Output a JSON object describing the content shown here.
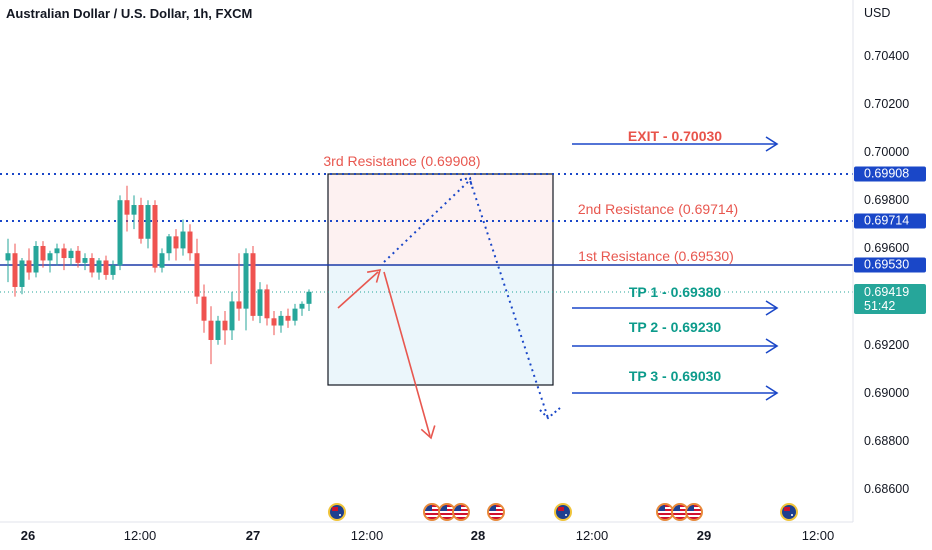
{
  "header": {
    "symbol_title": "Australian Dollar / U.S. Dollar, 1h, FXCM",
    "currency": "USD"
  },
  "price_axis": {
    "ticks": [
      "0.70400",
      "0.70200",
      "0.70000",
      "0.69800",
      "0.69600",
      "0.69200",
      "0.69000",
      "0.68800",
      "0.68600"
    ],
    "tags": [
      {
        "value": "0.69908",
        "color": "#1a47c8"
      },
      {
        "value": "0.69714",
        "color": "#1a47c8"
      },
      {
        "value": "0.69530",
        "color": "#1a47c8"
      }
    ],
    "current_price": {
      "value": "0.69419",
      "countdown": "51:42",
      "color": "#26a69a"
    }
  },
  "time_axis": {
    "labels": [
      {
        "text": "26",
        "bold": true
      },
      {
        "text": "12:00",
        "bold": false
      },
      {
        "text": "27",
        "bold": true
      },
      {
        "text": "12:00",
        "bold": false
      },
      {
        "text": "28",
        "bold": true
      },
      {
        "text": "12:00",
        "bold": false
      },
      {
        "text": "29",
        "bold": true
      },
      {
        "text": "12:00",
        "bold": false
      }
    ]
  },
  "annotations": {
    "exit": "EXIT - 0.70030",
    "resistance_3": "3rd Resistance (0.69908)",
    "resistance_2": "2nd Resistance (0.69714)",
    "resistance_1": "1st Resistance (0.69530)",
    "tp1": "TP 1 - 0.69380",
    "tp2": "TP 2 - 0.69230",
    "tp3": "TP 3 - 0.69030"
  },
  "events": [
    "au",
    "us",
    "us",
    "us",
    "us",
    "au",
    "us",
    "us",
    "us",
    "au"
  ],
  "colors": {
    "up": "#26a69a",
    "down": "#ef5350",
    "line": "#1a47c8",
    "red_arrow": "#e8574f"
  },
  "chart_data": {
    "type": "candlestick",
    "symbol": "Australian Dollar / U.S. Dollar",
    "interval": "1h",
    "source": "FXCM",
    "y_unit": "USD",
    "ylim": [
      0.685,
      0.7055
    ],
    "y_ticks": [
      0.704,
      0.702,
      0.7,
      0.698,
      0.696,
      0.692,
      0.69,
      0.688,
      0.686
    ],
    "x_labels": [
      "26",
      "12:00",
      "27",
      "12:00",
      "28",
      "12:00",
      "29",
      "12:00"
    ],
    "candles": [
      {
        "o": 0.6955,
        "h": 0.6964,
        "l": 0.6946,
        "c": 0.6958
      },
      {
        "o": 0.6958,
        "h": 0.6962,
        "l": 0.694,
        "c": 0.6944
      },
      {
        "o": 0.6944,
        "h": 0.6956,
        "l": 0.6941,
        "c": 0.6955
      },
      {
        "o": 0.6955,
        "h": 0.696,
        "l": 0.6947,
        "c": 0.695
      },
      {
        "o": 0.695,
        "h": 0.6963,
        "l": 0.6948,
        "c": 0.6961
      },
      {
        "o": 0.6961,
        "h": 0.6963,
        "l": 0.6952,
        "c": 0.6955
      },
      {
        "o": 0.6955,
        "h": 0.6959,
        "l": 0.695,
        "c": 0.6958
      },
      {
        "o": 0.6958,
        "h": 0.6962,
        "l": 0.6953,
        "c": 0.696
      },
      {
        "o": 0.696,
        "h": 0.6962,
        "l": 0.6951,
        "c": 0.6956
      },
      {
        "o": 0.6956,
        "h": 0.696,
        "l": 0.6953,
        "c": 0.6959
      },
      {
        "o": 0.6959,
        "h": 0.6961,
        "l": 0.6952,
        "c": 0.6954
      },
      {
        "o": 0.6954,
        "h": 0.6958,
        "l": 0.6951,
        "c": 0.6956
      },
      {
        "o": 0.6956,
        "h": 0.6958,
        "l": 0.6948,
        "c": 0.695
      },
      {
        "o": 0.695,
        "h": 0.6956,
        "l": 0.6947,
        "c": 0.6955
      },
      {
        "o": 0.6955,
        "h": 0.6957,
        "l": 0.6947,
        "c": 0.6949
      },
      {
        "o": 0.6949,
        "h": 0.6955,
        "l": 0.6947,
        "c": 0.6953
      },
      {
        "o": 0.6953,
        "h": 0.6982,
        "l": 0.6951,
        "c": 0.698
      },
      {
        "o": 0.698,
        "h": 0.6986,
        "l": 0.6967,
        "c": 0.6974
      },
      {
        "o": 0.6974,
        "h": 0.6982,
        "l": 0.6968,
        "c": 0.6978
      },
      {
        "o": 0.6978,
        "h": 0.6981,
        "l": 0.6962,
        "c": 0.6964
      },
      {
        "o": 0.6964,
        "h": 0.698,
        "l": 0.696,
        "c": 0.6978
      },
      {
        "o": 0.6978,
        "h": 0.698,
        "l": 0.695,
        "c": 0.6952
      },
      {
        "o": 0.6952,
        "h": 0.696,
        "l": 0.695,
        "c": 0.6958
      },
      {
        "o": 0.6958,
        "h": 0.6966,
        "l": 0.6955,
        "c": 0.6965
      },
      {
        "o": 0.6965,
        "h": 0.6968,
        "l": 0.6955,
        "c": 0.696
      },
      {
        "o": 0.696,
        "h": 0.6972,
        "l": 0.6957,
        "c": 0.6967
      },
      {
        "o": 0.6967,
        "h": 0.697,
        "l": 0.6955,
        "c": 0.6958
      },
      {
        "o": 0.6958,
        "h": 0.6964,
        "l": 0.6937,
        "c": 0.694
      },
      {
        "o": 0.694,
        "h": 0.6945,
        "l": 0.6925,
        "c": 0.693
      },
      {
        "o": 0.693,
        "h": 0.6936,
        "l": 0.6912,
        "c": 0.6922
      },
      {
        "o": 0.6922,
        "h": 0.6932,
        "l": 0.692,
        "c": 0.693
      },
      {
        "o": 0.693,
        "h": 0.6934,
        "l": 0.692,
        "c": 0.6926
      },
      {
        "o": 0.6926,
        "h": 0.6942,
        "l": 0.6922,
        "c": 0.6938
      },
      {
        "o": 0.6938,
        "h": 0.6958,
        "l": 0.693,
        "c": 0.6935
      },
      {
        "o": 0.6935,
        "h": 0.696,
        "l": 0.6926,
        "c": 0.6958
      },
      {
        "o": 0.6958,
        "h": 0.6961,
        "l": 0.693,
        "c": 0.6932
      },
      {
        "o": 0.6932,
        "h": 0.6946,
        "l": 0.6929,
        "c": 0.6943
      },
      {
        "o": 0.6943,
        "h": 0.6945,
        "l": 0.6928,
        "c": 0.6931
      },
      {
        "o": 0.6931,
        "h": 0.6934,
        "l": 0.6924,
        "c": 0.6928
      },
      {
        "o": 0.6928,
        "h": 0.6934,
        "l": 0.6925,
        "c": 0.6932
      },
      {
        "o": 0.6932,
        "h": 0.6935,
        "l": 0.6927,
        "c": 0.693
      },
      {
        "o": 0.693,
        "h": 0.6937,
        "l": 0.6928,
        "c": 0.6935
      },
      {
        "o": 0.6935,
        "h": 0.6938,
        "l": 0.6932,
        "c": 0.6937
      },
      {
        "o": 0.6937,
        "h": 0.6943,
        "l": 0.6934,
        "c": 0.6942
      }
    ]
  }
}
